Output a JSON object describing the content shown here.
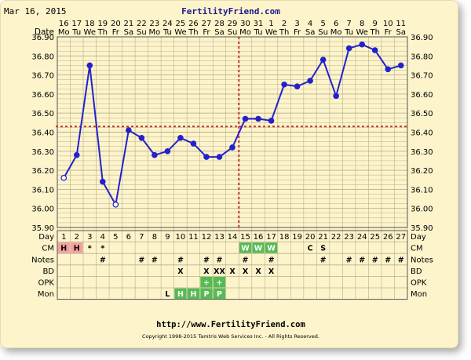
{
  "header": {
    "date": "Mar 16, 2015",
    "site": "FertilityFriend.com"
  },
  "footer": {
    "url": "http://www.FertilityFriend.com",
    "copyright": "Copyright 1998-2015 Tamtris Web Services Inc. - All Rights Reserved."
  },
  "colors": {
    "background": "#fdf4cc",
    "grid": "#b8b08a",
    "line": "#2222cc",
    "coverline": "#c0392b",
    "menses": "#f4a0a0",
    "highlight": "#55bb55"
  },
  "chart_data": {
    "type": "line",
    "ylim": [
      35.9,
      36.9
    ],
    "y_ticks": [
      "35.90",
      "36.00",
      "36.10",
      "36.20",
      "36.30",
      "36.40",
      "36.50",
      "36.60",
      "36.70",
      "36.80",
      "36.90"
    ],
    "date_row_label": "Date",
    "day_row_label": "Day",
    "dates": [
      "16",
      "17",
      "18",
      "19",
      "20",
      "21",
      "22",
      "23",
      "24",
      "25",
      "26",
      "27",
      "28",
      "29",
      "30",
      "31",
      "1",
      "2",
      "3",
      "4",
      "5",
      "6",
      "7",
      "8",
      "9",
      "10",
      "11"
    ],
    "weekdays": [
      "Mo",
      "Tu",
      "We",
      "Th",
      "Fr",
      "Sa",
      "Su",
      "Mo",
      "Tu",
      "We",
      "Th",
      "Fr",
      "Sa",
      "Su",
      "Mo",
      "Tu",
      "We",
      "Th",
      "Fr",
      "Sa",
      "Su",
      "Mo",
      "Tu",
      "We",
      "Th",
      "Fr",
      "Sa"
    ],
    "days": [
      "1",
      "2",
      "3",
      "4",
      "5",
      "6",
      "7",
      "8",
      "9",
      "10",
      "11",
      "12",
      "13",
      "14",
      "15",
      "16",
      "17",
      "18",
      "19",
      "20",
      "21",
      "22",
      "23",
      "24",
      "25",
      "26",
      "27"
    ],
    "temps": [
      36.16,
      36.28,
      36.75,
      36.14,
      36.02,
      36.41,
      36.37,
      36.28,
      36.3,
      36.37,
      36.34,
      36.27,
      36.27,
      36.32,
      36.47,
      36.47,
      36.46,
      36.65,
      36.64,
      36.67,
      36.78,
      36.59,
      36.84,
      36.86,
      36.83,
      36.73,
      36.75
    ],
    "open_points": [
      1,
      5
    ],
    "coverline": 36.43,
    "ovulation_day": 14,
    "rows": [
      {
        "label": "CM",
        "cells": [
          "H",
          "H",
          "*",
          "*",
          "",
          "",
          "",
          "",
          "",
          "",
          "",
          "",
          "",
          "",
          "W",
          "W",
          "W",
          "",
          "",
          "C",
          "S",
          "",
          "",
          "",
          "",
          "",
          ""
        ]
      },
      {
        "label": "Notes",
        "cells": [
          "",
          "",
          "",
          "#",
          "",
          "",
          "#",
          "#",
          "",
          "#",
          "",
          "#",
          "#",
          "",
          "#",
          "",
          "#",
          "",
          "",
          "",
          "#",
          "",
          "#",
          "#",
          "#",
          "#",
          "#"
        ]
      },
      {
        "label": "BD",
        "cells": [
          "",
          "",
          "",
          "",
          "",
          "",
          "",
          "",
          "",
          "X",
          "",
          "X",
          "XX",
          "X",
          "X",
          "X",
          "X",
          "",
          "",
          "",
          "",
          "",
          "",
          "",
          "",
          "",
          ""
        ]
      },
      {
        "label": "OPK",
        "cells": [
          "",
          "",
          "",
          "",
          "",
          "",
          "",
          "",
          "",
          "",
          "",
          "+",
          "+",
          "",
          "",
          "",
          "",
          "",
          "",
          "",
          "",
          "",
          "",
          "",
          "",
          "",
          ""
        ]
      },
      {
        "label": "Mon",
        "cells": [
          "",
          "",
          "",
          "",
          "",
          "",
          "",
          "",
          "L",
          "H",
          "H",
          "P",
          "P",
          "",
          "",
          "",
          "",
          "",
          "",
          "",
          "",
          "",
          "",
          "",
          "",
          "",
          ""
        ]
      }
    ]
  }
}
